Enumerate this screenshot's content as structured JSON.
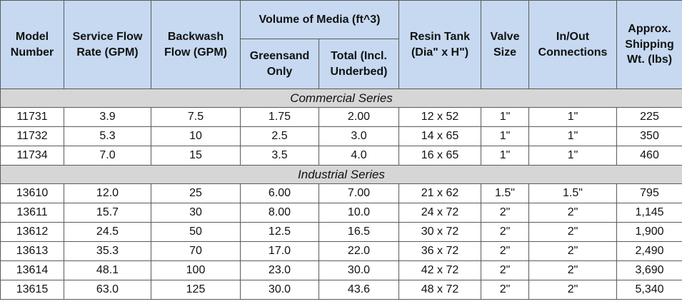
{
  "header": {
    "model": [
      "Model",
      "Number"
    ],
    "service_flow": [
      "Service Flow",
      "Rate (GPM)"
    ],
    "backwash": [
      "Backwash",
      "Flow (GPM)"
    ],
    "volume_group": "Volume of Media (ft^3)",
    "greensand": [
      "Greensand",
      "Only"
    ],
    "total": [
      "Total (Incl.",
      "Underbed)"
    ],
    "resin_tank": [
      "Resin Tank",
      "(Dia\" x H\")"
    ],
    "valve": [
      "Valve",
      "Size"
    ],
    "connections": [
      "In/Out",
      "Connections"
    ],
    "shipping": [
      "Approx.",
      "Shipping",
      "Wt. (lbs)"
    ]
  },
  "sections": [
    {
      "title": "Commercial Series",
      "rows": [
        [
          "11731",
          "3.9",
          "7.5",
          "1.75",
          "2.00",
          "12 x 52",
          "1\"",
          "1\"",
          "225"
        ],
        [
          "11732",
          "5.3",
          "10",
          "2.5",
          "3.0",
          "14 x 65",
          "1\"",
          "1\"",
          "350"
        ],
        [
          "11734",
          "7.0",
          "15",
          "3.5",
          "4.0",
          "16 x 65",
          "1\"",
          "1\"",
          "460"
        ]
      ]
    },
    {
      "title": "Industrial Series",
      "rows": [
        [
          "13610",
          "12.0",
          "25",
          "6.00",
          "7.00",
          "21 x 62",
          "1.5\"",
          "1.5\"",
          "795"
        ],
        [
          "13611",
          "15.7",
          "30",
          "8.00",
          "10.0",
          "24 x 72",
          "2\"",
          "2\"",
          "1,145"
        ],
        [
          "13612",
          "24.5",
          "50",
          "12.5",
          "16.5",
          "30 x 72",
          "2\"",
          "2\"",
          "1,900"
        ],
        [
          "13613",
          "35.3",
          "70",
          "17.0",
          "22.0",
          "36 x 72",
          "2\"",
          "2\"",
          "2,490"
        ],
        [
          "13614",
          "48.1",
          "100",
          "23.0",
          "30.0",
          "42 x 72",
          "2\"",
          "2\"",
          "3,690"
        ],
        [
          "13615",
          "63.0",
          "125",
          "30.0",
          "43.6",
          "48 x 72",
          "2\"",
          "2\"",
          "5,340"
        ]
      ]
    }
  ],
  "colors": {
    "header_bg": "#c6d9f1",
    "section_bg": "#d6d6d6",
    "border": "#5a5a5a"
  }
}
